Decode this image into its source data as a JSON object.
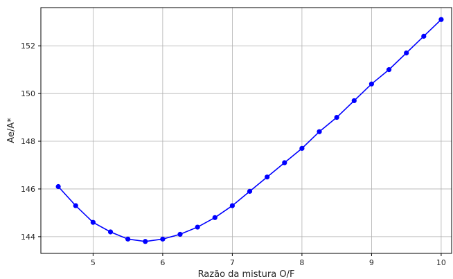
{
  "chart_data": {
    "type": "line",
    "xlabel": "Razão da mistura O/F",
    "ylabel": "Ae/A*",
    "xlim": [
      4.25,
      10.15
    ],
    "ylim": [
      143.3,
      153.6
    ],
    "xticks": [
      5,
      6,
      7,
      8,
      9,
      10
    ],
    "yticks": [
      144,
      146,
      148,
      150,
      152
    ],
    "grid": true,
    "series": [
      {
        "color": "#0000ff",
        "marker": "circle",
        "x": [
          4.5,
          4.75,
          5.0,
          5.25,
          5.5,
          5.75,
          6.0,
          6.25,
          6.5,
          6.75,
          7.0,
          7.25,
          7.5,
          7.75,
          8.0,
          8.25,
          8.5,
          8.75,
          9.0,
          9.25,
          9.5,
          9.75,
          10.0
        ],
        "y": [
          146.1,
          145.3,
          144.6,
          144.2,
          143.9,
          143.8,
          143.9,
          144.1,
          144.4,
          144.8,
          145.3,
          145.9,
          146.5,
          147.1,
          147.7,
          148.4,
          149.0,
          149.7,
          150.4,
          151.0,
          151.7,
          152.4,
          153.1
        ]
      }
    ]
  }
}
